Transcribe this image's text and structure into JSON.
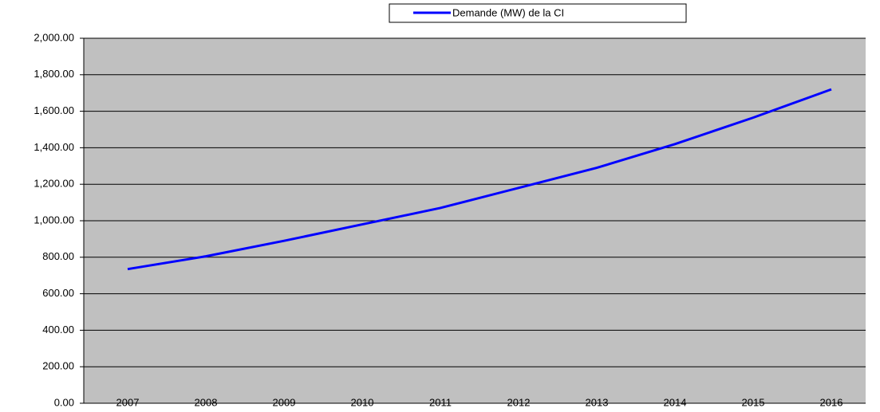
{
  "chart_data": {
    "type": "line",
    "categories": [
      "2007",
      "2008",
      "2009",
      "2010",
      "2011",
      "2012",
      "2013",
      "2014",
      "2015",
      "2016"
    ],
    "series": [
      {
        "name": "Demande (MW) de la CI",
        "color": "#0000ff",
        "values": [
          735,
          805,
          890,
          980,
          1070,
          1180,
          1290,
          1420,
          1565,
          1720
        ]
      }
    ],
    "ylim": [
      0,
      2000
    ],
    "yticks": [
      {
        "value": 0,
        "label": "0.00"
      },
      {
        "value": 200,
        "label": "200.00"
      },
      {
        "value": 400,
        "label": "400.00"
      },
      {
        "value": 600,
        "label": "600.00"
      },
      {
        "value": 800,
        "label": "800.00"
      },
      {
        "value": 1000,
        "label": "1,000.00"
      },
      {
        "value": 1200,
        "label": "1,200.00"
      },
      {
        "value": 1400,
        "label": "1,400.00"
      },
      {
        "value": 1600,
        "label": "1,600.00"
      },
      {
        "value": 1800,
        "label": "1,800.00"
      },
      {
        "value": 2000,
        "label": "2,000.00"
      }
    ],
    "grid": true,
    "legend": "top"
  }
}
